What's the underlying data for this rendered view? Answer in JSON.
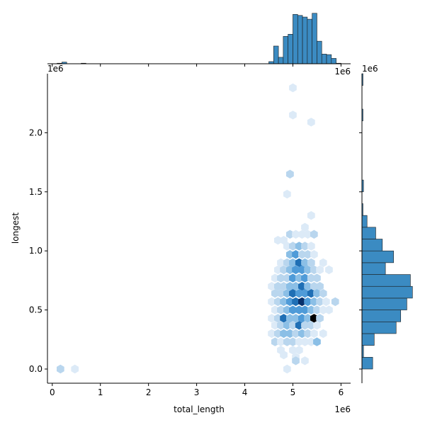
{
  "chart_data": {
    "type": "hexbin_joint",
    "xlabel": "total_length",
    "ylabel": "longest",
    "x_offset_text": "1e6",
    "y_offset_text": "1e6",
    "xlim": [
      -0.1,
      6.2
    ],
    "ylim": [
      -0.12,
      2.5
    ],
    "x_ticks": [
      0,
      1,
      2,
      3,
      4,
      5,
      6
    ],
    "x_tick_labels": [
      "0",
      "1",
      "2",
      "3",
      "4",
      "5",
      "6"
    ],
    "y_ticks": [
      0.0,
      0.5,
      1.0,
      1.5,
      2.0
    ],
    "y_tick_labels": [
      "0.0",
      "0.5",
      "1.0",
      "1.5",
      "2.0"
    ],
    "colors": {
      "hex_scale": [
        "#dceaf7",
        "#b9d6ee",
        "#8bbfe6",
        "#4f9bd8",
        "#1f6fb5",
        "#08306b",
        "#000000"
      ],
      "hist_fill": "#3b8bc2",
      "hist_stroke": "#1c1c1c",
      "axis": "#000000"
    },
    "hexbins": [
      {
        "x": 0.17,
        "y": 0.0,
        "c": 1
      },
      {
        "x": 0.47,
        "y": 0.0,
        "c": 0
      },
      {
        "x": 5.0,
        "y": 2.38,
        "c": 0
      },
      {
        "x": 5.0,
        "y": 2.15,
        "c": 0
      },
      {
        "x": 5.38,
        "y": 2.09,
        "c": 0
      },
      {
        "x": 4.94,
        "y": 1.65,
        "c": 1
      },
      {
        "x": 4.88,
        "y": 1.48,
        "c": 0
      },
      {
        "x": 5.38,
        "y": 1.3,
        "c": 0
      },
      {
        "x": 5.25,
        "y": 1.2,
        "c": 0
      },
      {
        "x": 4.81,
        "y": 1.09,
        "c": 0
      },
      {
        "x": 4.94,
        "y": 1.14,
        "c": 1
      },
      {
        "x": 5.06,
        "y": 1.14,
        "c": 0
      },
      {
        "x": 5.19,
        "y": 1.14,
        "c": 0
      },
      {
        "x": 5.31,
        "y": 1.14,
        "c": 0
      },
      {
        "x": 5.44,
        "y": 1.14,
        "c": 1
      },
      {
        "x": 4.69,
        "y": 1.09,
        "c": 0
      },
      {
        "x": 4.88,
        "y": 1.04,
        "c": 0
      },
      {
        "x": 5.0,
        "y": 1.04,
        "c": 1
      },
      {
        "x": 5.13,
        "y": 1.04,
        "c": 2
      },
      {
        "x": 5.25,
        "y": 1.04,
        "c": 1
      },
      {
        "x": 5.38,
        "y": 1.04,
        "c": 0
      },
      {
        "x": 4.94,
        "y": 0.97,
        "c": 2
      },
      {
        "x": 5.06,
        "y": 0.97,
        "c": 3
      },
      {
        "x": 5.19,
        "y": 0.97,
        "c": 1
      },
      {
        "x": 5.31,
        "y": 0.97,
        "c": 1
      },
      {
        "x": 5.44,
        "y": 0.97,
        "c": 0
      },
      {
        "x": 4.75,
        "y": 0.9,
        "c": 0
      },
      {
        "x": 4.88,
        "y": 0.9,
        "c": 1
      },
      {
        "x": 5.0,
        "y": 0.9,
        "c": 2
      },
      {
        "x": 5.13,
        "y": 0.9,
        "c": 4
      },
      {
        "x": 5.25,
        "y": 0.9,
        "c": 2
      },
      {
        "x": 5.38,
        "y": 0.9,
        "c": 1
      },
      {
        "x": 5.63,
        "y": 0.9,
        "c": 0
      },
      {
        "x": 4.69,
        "y": 0.84,
        "c": 0
      },
      {
        "x": 4.81,
        "y": 0.84,
        "c": 1
      },
      {
        "x": 4.94,
        "y": 0.84,
        "c": 2
      },
      {
        "x": 5.06,
        "y": 0.84,
        "c": 3
      },
      {
        "x": 5.19,
        "y": 0.84,
        "c": 3
      },
      {
        "x": 5.31,
        "y": 0.84,
        "c": 2
      },
      {
        "x": 5.44,
        "y": 0.84,
        "c": 1
      },
      {
        "x": 5.56,
        "y": 0.84,
        "c": 0
      },
      {
        "x": 4.63,
        "y": 0.77,
        "c": 0
      },
      {
        "x": 4.75,
        "y": 0.77,
        "c": 1
      },
      {
        "x": 4.88,
        "y": 0.77,
        "c": 1
      },
      {
        "x": 5.0,
        "y": 0.77,
        "c": 3
      },
      {
        "x": 5.13,
        "y": 0.77,
        "c": 2
      },
      {
        "x": 5.25,
        "y": 0.77,
        "c": 3
      },
      {
        "x": 5.38,
        "y": 0.77,
        "c": 1
      },
      {
        "x": 5.5,
        "y": 0.77,
        "c": 1
      },
      {
        "x": 5.75,
        "y": 0.84,
        "c": 0
      },
      {
        "x": 4.56,
        "y": 0.7,
        "c": 0
      },
      {
        "x": 4.69,
        "y": 0.7,
        "c": 1
      },
      {
        "x": 4.81,
        "y": 0.7,
        "c": 1
      },
      {
        "x": 4.94,
        "y": 0.7,
        "c": 2
      },
      {
        "x": 5.06,
        "y": 0.7,
        "c": 2
      },
      {
        "x": 5.19,
        "y": 0.7,
        "c": 4
      },
      {
        "x": 5.31,
        "y": 0.7,
        "c": 2
      },
      {
        "x": 5.44,
        "y": 0.7,
        "c": 1
      },
      {
        "x": 5.56,
        "y": 0.7,
        "c": 1
      },
      {
        "x": 4.63,
        "y": 0.64,
        "c": 1
      },
      {
        "x": 4.75,
        "y": 0.64,
        "c": 1
      },
      {
        "x": 4.88,
        "y": 0.64,
        "c": 2
      },
      {
        "x": 5.0,
        "y": 0.64,
        "c": 4
      },
      {
        "x": 5.13,
        "y": 0.64,
        "c": 3
      },
      {
        "x": 5.25,
        "y": 0.64,
        "c": 3
      },
      {
        "x": 5.38,
        "y": 0.64,
        "c": 4
      },
      {
        "x": 5.5,
        "y": 0.64,
        "c": 2
      },
      {
        "x": 5.63,
        "y": 0.64,
        "c": 1
      },
      {
        "x": 4.56,
        "y": 0.57,
        "c": 0
      },
      {
        "x": 4.69,
        "y": 0.57,
        "c": 1
      },
      {
        "x": 4.81,
        "y": 0.57,
        "c": 2
      },
      {
        "x": 4.94,
        "y": 0.57,
        "c": 3
      },
      {
        "x": 5.06,
        "y": 0.57,
        "c": 4
      },
      {
        "x": 5.19,
        "y": 0.57,
        "c": 5
      },
      {
        "x": 5.31,
        "y": 0.57,
        "c": 3
      },
      {
        "x": 5.44,
        "y": 0.57,
        "c": 2
      },
      {
        "x": 5.56,
        "y": 0.57,
        "c": 1
      },
      {
        "x": 5.69,
        "y": 0.57,
        "c": 0
      },
      {
        "x": 4.63,
        "y": 0.5,
        "c": 0
      },
      {
        "x": 4.75,
        "y": 0.5,
        "c": 1
      },
      {
        "x": 4.88,
        "y": 0.5,
        "c": 2
      },
      {
        "x": 5.0,
        "y": 0.5,
        "c": 3
      },
      {
        "x": 5.13,
        "y": 0.5,
        "c": 3
      },
      {
        "x": 5.25,
        "y": 0.5,
        "c": 3
      },
      {
        "x": 5.38,
        "y": 0.5,
        "c": 2
      },
      {
        "x": 5.5,
        "y": 0.5,
        "c": 1
      },
      {
        "x": 5.63,
        "y": 0.5,
        "c": 0
      },
      {
        "x": 5.88,
        "y": 0.57,
        "c": 1
      },
      {
        "x": 5.75,
        "y": 0.5,
        "c": 0
      },
      {
        "x": 4.56,
        "y": 0.43,
        "c": 0
      },
      {
        "x": 4.69,
        "y": 0.43,
        "c": 1
      },
      {
        "x": 4.81,
        "y": 0.43,
        "c": 4
      },
      {
        "x": 4.94,
        "y": 0.43,
        "c": 2
      },
      {
        "x": 5.06,
        "y": 0.43,
        "c": 2
      },
      {
        "x": 5.19,
        "y": 0.43,
        "c": 3
      },
      {
        "x": 5.31,
        "y": 0.43,
        "c": 2
      },
      {
        "x": 5.44,
        "y": 0.43,
        "c": 6
      },
      {
        "x": 5.56,
        "y": 0.43,
        "c": 1
      },
      {
        "x": 4.63,
        "y": 0.37,
        "c": 0
      },
      {
        "x": 4.75,
        "y": 0.37,
        "c": 1
      },
      {
        "x": 4.88,
        "y": 0.37,
        "c": 2
      },
      {
        "x": 5.0,
        "y": 0.37,
        "c": 1
      },
      {
        "x": 5.13,
        "y": 0.37,
        "c": 4
      },
      {
        "x": 5.25,
        "y": 0.37,
        "c": 1
      },
      {
        "x": 5.38,
        "y": 0.37,
        "c": 1
      },
      {
        "x": 5.5,
        "y": 0.37,
        "c": 0
      },
      {
        "x": 4.56,
        "y": 0.3,
        "c": 0
      },
      {
        "x": 4.69,
        "y": 0.3,
        "c": 1
      },
      {
        "x": 4.81,
        "y": 0.3,
        "c": 2
      },
      {
        "x": 4.94,
        "y": 0.3,
        "c": 2
      },
      {
        "x": 5.06,
        "y": 0.3,
        "c": 1
      },
      {
        "x": 5.19,
        "y": 0.3,
        "c": 2
      },
      {
        "x": 5.31,
        "y": 0.3,
        "c": 1
      },
      {
        "x": 5.44,
        "y": 0.3,
        "c": 0
      },
      {
        "x": 5.63,
        "y": 0.3,
        "c": 0
      },
      {
        "x": 4.63,
        "y": 0.23,
        "c": 1
      },
      {
        "x": 4.75,
        "y": 0.23,
        "c": 0
      },
      {
        "x": 4.88,
        "y": 0.23,
        "c": 1
      },
      {
        "x": 5.0,
        "y": 0.23,
        "c": 1
      },
      {
        "x": 5.13,
        "y": 0.23,
        "c": 0
      },
      {
        "x": 5.25,
        "y": 0.23,
        "c": 0
      },
      {
        "x": 5.38,
        "y": 0.23,
        "c": 0
      },
      {
        "x": 5.5,
        "y": 0.23,
        "c": 2
      },
      {
        "x": 4.75,
        "y": 0.16,
        "c": 0
      },
      {
        "x": 5.0,
        "y": 0.16,
        "c": 0
      },
      {
        "x": 5.13,
        "y": 0.16,
        "c": 0
      },
      {
        "x": 4.81,
        "y": 0.12,
        "c": 0
      },
      {
        "x": 5.06,
        "y": 0.1,
        "c": 0
      },
      {
        "x": 5.06,
        "y": 0.07,
        "c": 1
      },
      {
        "x": 4.88,
        "y": 0.0,
        "c": 0
      },
      {
        "x": 5.25,
        "y": 0.07,
        "c": 0
      }
    ],
    "x_hist": {
      "bin_edges_start": 0.0,
      "bin_width": 0.1,
      "counts": [
        0,
        1,
        3,
        0,
        0,
        0,
        1,
        0,
        0,
        0,
        0,
        0,
        0,
        0,
        0,
        0,
        0,
        0,
        0,
        0,
        0,
        0,
        0,
        0,
        0,
        0,
        0,
        0,
        0,
        0,
        0,
        0,
        0,
        0,
        0,
        0,
        0,
        0,
        0,
        0,
        0,
        0,
        0,
        0,
        0,
        4,
        33,
        12,
        51,
        55,
        92,
        90,
        87,
        83,
        94,
        42,
        18,
        17,
        10,
        1
      ],
      "max": 95
    },
    "y_hist": {
      "bin_edges_start": 0.0,
      "bin_width": 0.1,
      "counts": [
        21,
        3,
        24,
        67,
        76,
        88,
        99,
        95,
        46,
        62,
        40,
        27,
        10,
        2,
        0,
        3,
        0,
        0,
        0,
        0,
        0,
        2,
        0,
        0,
        2
      ],
      "max": 100
    }
  }
}
